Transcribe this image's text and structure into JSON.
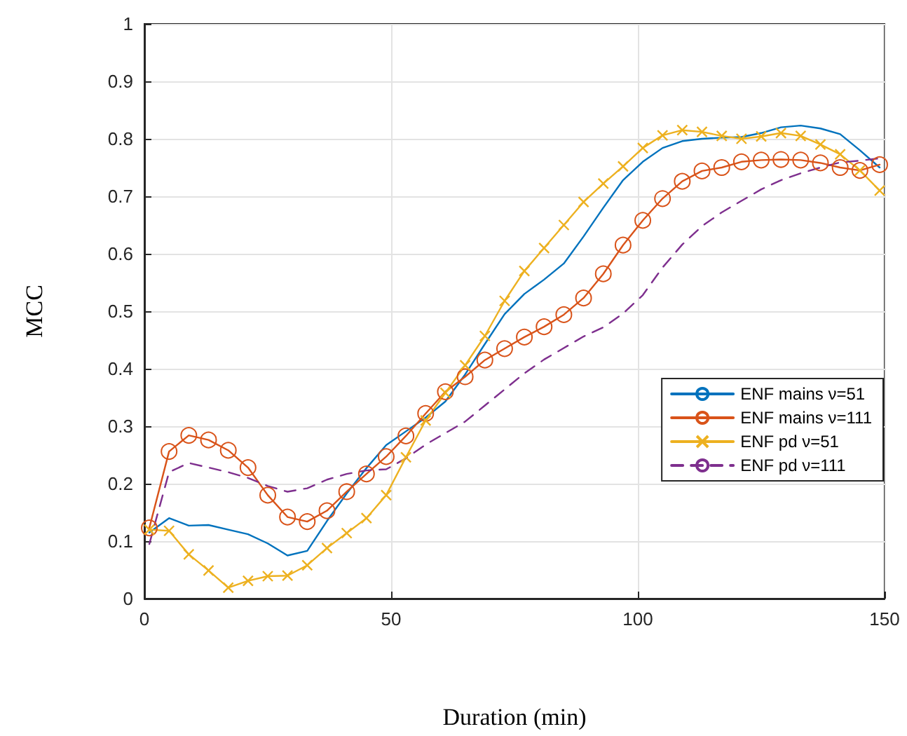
{
  "chart_data": {
    "type": "line",
    "xlabel": "Duration (min)",
    "ylabel": "MCC",
    "x": [
      1,
      5,
      9,
      13,
      17,
      21,
      25,
      29,
      33,
      37,
      41,
      45,
      49,
      53,
      57,
      61,
      65,
      69,
      73,
      77,
      81,
      85,
      89,
      93,
      97,
      101,
      105,
      109,
      113,
      117,
      121,
      125,
      129,
      133,
      137,
      141,
      145,
      149
    ],
    "series": [
      {
        "name": "ENF mains ν=51",
        "color": "#0072bd",
        "marker": "none",
        "line_style": "solid",
        "values": [
          0.115,
          0.14,
          0.127,
          0.128,
          0.12,
          0.112,
          0.096,
          0.075,
          0.083,
          0.135,
          0.183,
          0.227,
          0.267,
          0.291,
          0.315,
          0.343,
          0.39,
          0.443,
          0.495,
          0.53,
          0.555,
          0.583,
          0.63,
          0.68,
          0.728,
          0.76,
          0.784,
          0.796,
          0.8,
          0.802,
          0.803,
          0.81,
          0.82,
          0.823,
          0.818,
          0.808,
          0.78,
          0.75
        ]
      },
      {
        "name": "ENF mains ν=111",
        "color": "#d95319",
        "marker": "circle",
        "line_style": "solid",
        "values": [
          0.123,
          0.256,
          0.284,
          0.276,
          0.258,
          0.228,
          0.18,
          0.142,
          0.134,
          0.153,
          0.186,
          0.217,
          0.247,
          0.283,
          0.322,
          0.36,
          0.386,
          0.415,
          0.435,
          0.455,
          0.473,
          0.494,
          0.523,
          0.565,
          0.615,
          0.658,
          0.696,
          0.726,
          0.744,
          0.75,
          0.76,
          0.763,
          0.764,
          0.763,
          0.758,
          0.75,
          0.745,
          0.755
        ]
      },
      {
        "name": "ENF pd ν=51",
        "color": "#edb120",
        "marker": "cross",
        "line_style": "solid",
        "values": [
          0.12,
          0.118,
          0.077,
          0.049,
          0.019,
          0.031,
          0.039,
          0.04,
          0.058,
          0.088,
          0.114,
          0.14,
          0.18,
          0.246,
          0.31,
          0.358,
          0.406,
          0.457,
          0.518,
          0.57,
          0.61,
          0.65,
          0.69,
          0.722,
          0.752,
          0.784,
          0.806,
          0.815,
          0.812,
          0.805,
          0.8,
          0.804,
          0.81,
          0.805,
          0.79,
          0.773,
          0.745,
          0.71
        ]
      },
      {
        "name": "ENF pd ν=111",
        "color": "#7e2f8e",
        "marker": "none",
        "line_style": "dashed",
        "values": [
          0.095,
          0.22,
          0.236,
          0.228,
          0.22,
          0.21,
          0.196,
          0.186,
          0.192,
          0.207,
          0.217,
          0.223,
          0.225,
          0.244,
          0.268,
          0.288,
          0.308,
          0.336,
          0.364,
          0.392,
          0.416,
          0.436,
          0.456,
          0.472,
          0.496,
          0.528,
          0.576,
          0.616,
          0.648,
          0.672,
          0.692,
          0.712,
          0.728,
          0.74,
          0.75,
          0.759,
          0.762,
          0.766
        ]
      }
    ],
    "xlim": [
      0,
      150
    ],
    "xticks": [
      0,
      50,
      100,
      150
    ],
    "ylim": [
      0,
      1
    ],
    "yticks": [
      0,
      0.1,
      0.2,
      0.3,
      0.4,
      0.5,
      0.6,
      0.7,
      0.8,
      0.9,
      1
    ],
    "grid": true,
    "legend": "right"
  }
}
